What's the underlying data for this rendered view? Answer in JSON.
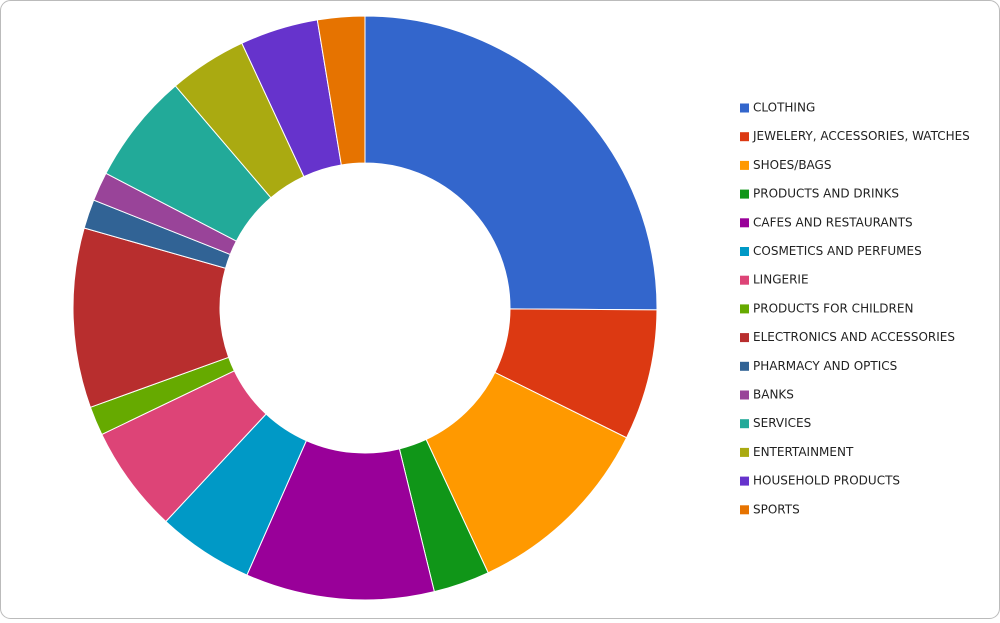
{
  "chart_data": {
    "type": "donut",
    "categories": [
      "CLOTHING",
      "JEWELERY, ACCESSORIES, WATCHES",
      "SHOES/BAGS",
      "PRODUCTS AND DRINKS",
      "CAFES AND RESTAURANTS",
      "COSMETICS AND PERFUMES",
      "LINGERIE",
      "PRODUCTS FOR CHILDREN",
      "ELECTRONICS AND ACCESSORIES",
      "PHARMACY AND OPTICS",
      "BANKS",
      "SERVICES",
      "ENTERTAINMENT",
      "HOUSEHOLD PRODUCTS",
      "SPORTS"
    ],
    "values": [
      25,
      7.2,
      10.7,
      3.1,
      10.4,
      5.3,
      5.9,
      1.6,
      9.9,
      1.6,
      1.6,
      6.1,
      4.3,
      4.3,
      2.6
    ],
    "colors": [
      "#3366cc",
      "#dc3912",
      "#ff9900",
      "#109618",
      "#990099",
      "#0099c6",
      "#dd4477",
      "#66aa00",
      "#b82e2e",
      "#316395",
      "#994499",
      "#22aa99",
      "#aaaa11",
      "#6633cc",
      "#e67300"
    ],
    "legend": "right"
  }
}
